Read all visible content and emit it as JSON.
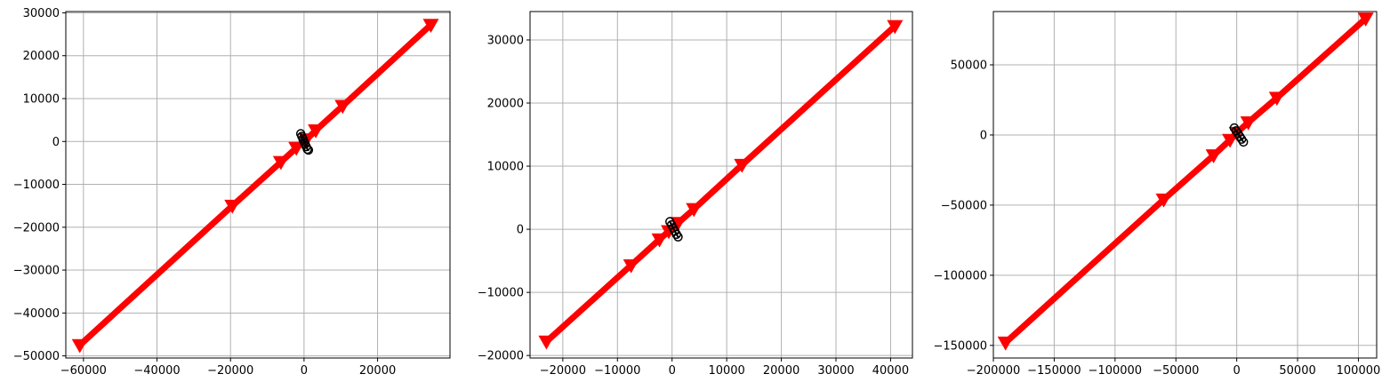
{
  "chart_data": [
    {
      "type": "line",
      "title": "",
      "xlabel": "",
      "ylabel": "",
      "xlim": [
        -64800,
        39700
      ],
      "ylim": [
        -50500,
        30300
      ],
      "xticks": [
        -60000,
        -40000,
        -20000,
        0,
        20000
      ],
      "yticks": [
        -50000,
        -40000,
        -30000,
        -20000,
        -10000,
        0,
        10000,
        20000,
        30000
      ],
      "xtick_labels": [
        "−60000",
        "−40000",
        "−20000",
        "0",
        "20000"
      ],
      "ytick_labels": [
        "−50000",
        "−40000",
        "−30000",
        "−20000",
        "−10000",
        "0",
        "10000",
        "20000",
        "30000"
      ],
      "grid": true,
      "series": [
        {
          "color": "#ff0000",
          "marker": "triangle-down",
          "x": [
            -61000,
            -19500,
            -6300,
            -2100,
            700,
            3200,
            10500,
            34500
          ],
          "y": [
            -47500,
            -15000,
            -4800,
            -1500,
            500,
            2600,
            8300,
            27200
          ]
        },
        {
          "color": "#000000",
          "marker": "circle-open",
          "x": [
            -900,
            -600,
            -300,
            0,
            300,
            600,
            900,
            1200
          ],
          "y": [
            1800,
            1200,
            600,
            0,
            -600,
            -1200,
            -1800,
            -2000
          ]
        }
      ]
    },
    {
      "type": "line",
      "title": "",
      "xlabel": "",
      "ylabel": "",
      "xlim": [
        -26000,
        44000
      ],
      "ylim": [
        -20400,
        34500
      ],
      "xticks": [
        -20000,
        -10000,
        0,
        10000,
        20000,
        30000,
        40000
      ],
      "yticks": [
        -20000,
        -10000,
        0,
        10000,
        20000,
        30000
      ],
      "xtick_labels": [
        "−20000",
        "−10000",
        "0",
        "10000",
        "20000",
        "30000",
        "40000"
      ],
      "ytick_labels": [
        "−20000",
        "−10000",
        "0",
        "10000",
        "20000",
        "30000"
      ],
      "grid": true,
      "series": [
        {
          "color": "#ff0000",
          "marker": "triangle-down",
          "x": [
            -23000,
            -7500,
            -2300,
            -600,
            1100,
            4000,
            12800,
            40800
          ],
          "y": [
            -17800,
            -5700,
            -1600,
            -300,
            1000,
            3200,
            10200,
            32200
          ]
        },
        {
          "color": "#000000",
          "marker": "circle-open",
          "x": [
            -400,
            -100,
            200,
            500,
            800,
            1100
          ],
          "y": [
            1200,
            700,
            200,
            -300,
            -800,
            -1200
          ]
        }
      ]
    },
    {
      "type": "line",
      "title": "",
      "xlabel": "",
      "ylabel": "",
      "xlim": [
        -200000,
        115000
      ],
      "ylim": [
        -159000,
        88000
      ],
      "xticks": [
        -200000,
        -150000,
        -100000,
        -50000,
        0,
        50000,
        100000
      ],
      "yticks": [
        -150000,
        -100000,
        -50000,
        0,
        50000
      ],
      "xtick_labels": [
        "−200000",
        "−150000",
        "−100000",
        "−50000",
        "0",
        "50000",
        "100000"
      ],
      "ytick_labels": [
        "−150000",
        "−100000",
        "−50000",
        "0",
        "50000"
      ],
      "grid": true,
      "series": [
        {
          "color": "#ff0000",
          "marker": "triangle-down",
          "x": [
            -190000,
            -60000,
            -19000,
            -5500,
            0,
            9500,
            33000,
            106000
          ],
          "y": [
            -148000,
            -46000,
            -14500,
            -3500,
            1500,
            9000,
            26500,
            83000
          ]
        },
        {
          "color": "#000000",
          "marker": "circle-open",
          "x": [
            -2000,
            -500,
            1000,
            2500,
            4000,
            5500
          ],
          "y": [
            5000,
            3000,
            1000,
            -1000,
            -3000,
            -5000
          ]
        }
      ]
    }
  ]
}
